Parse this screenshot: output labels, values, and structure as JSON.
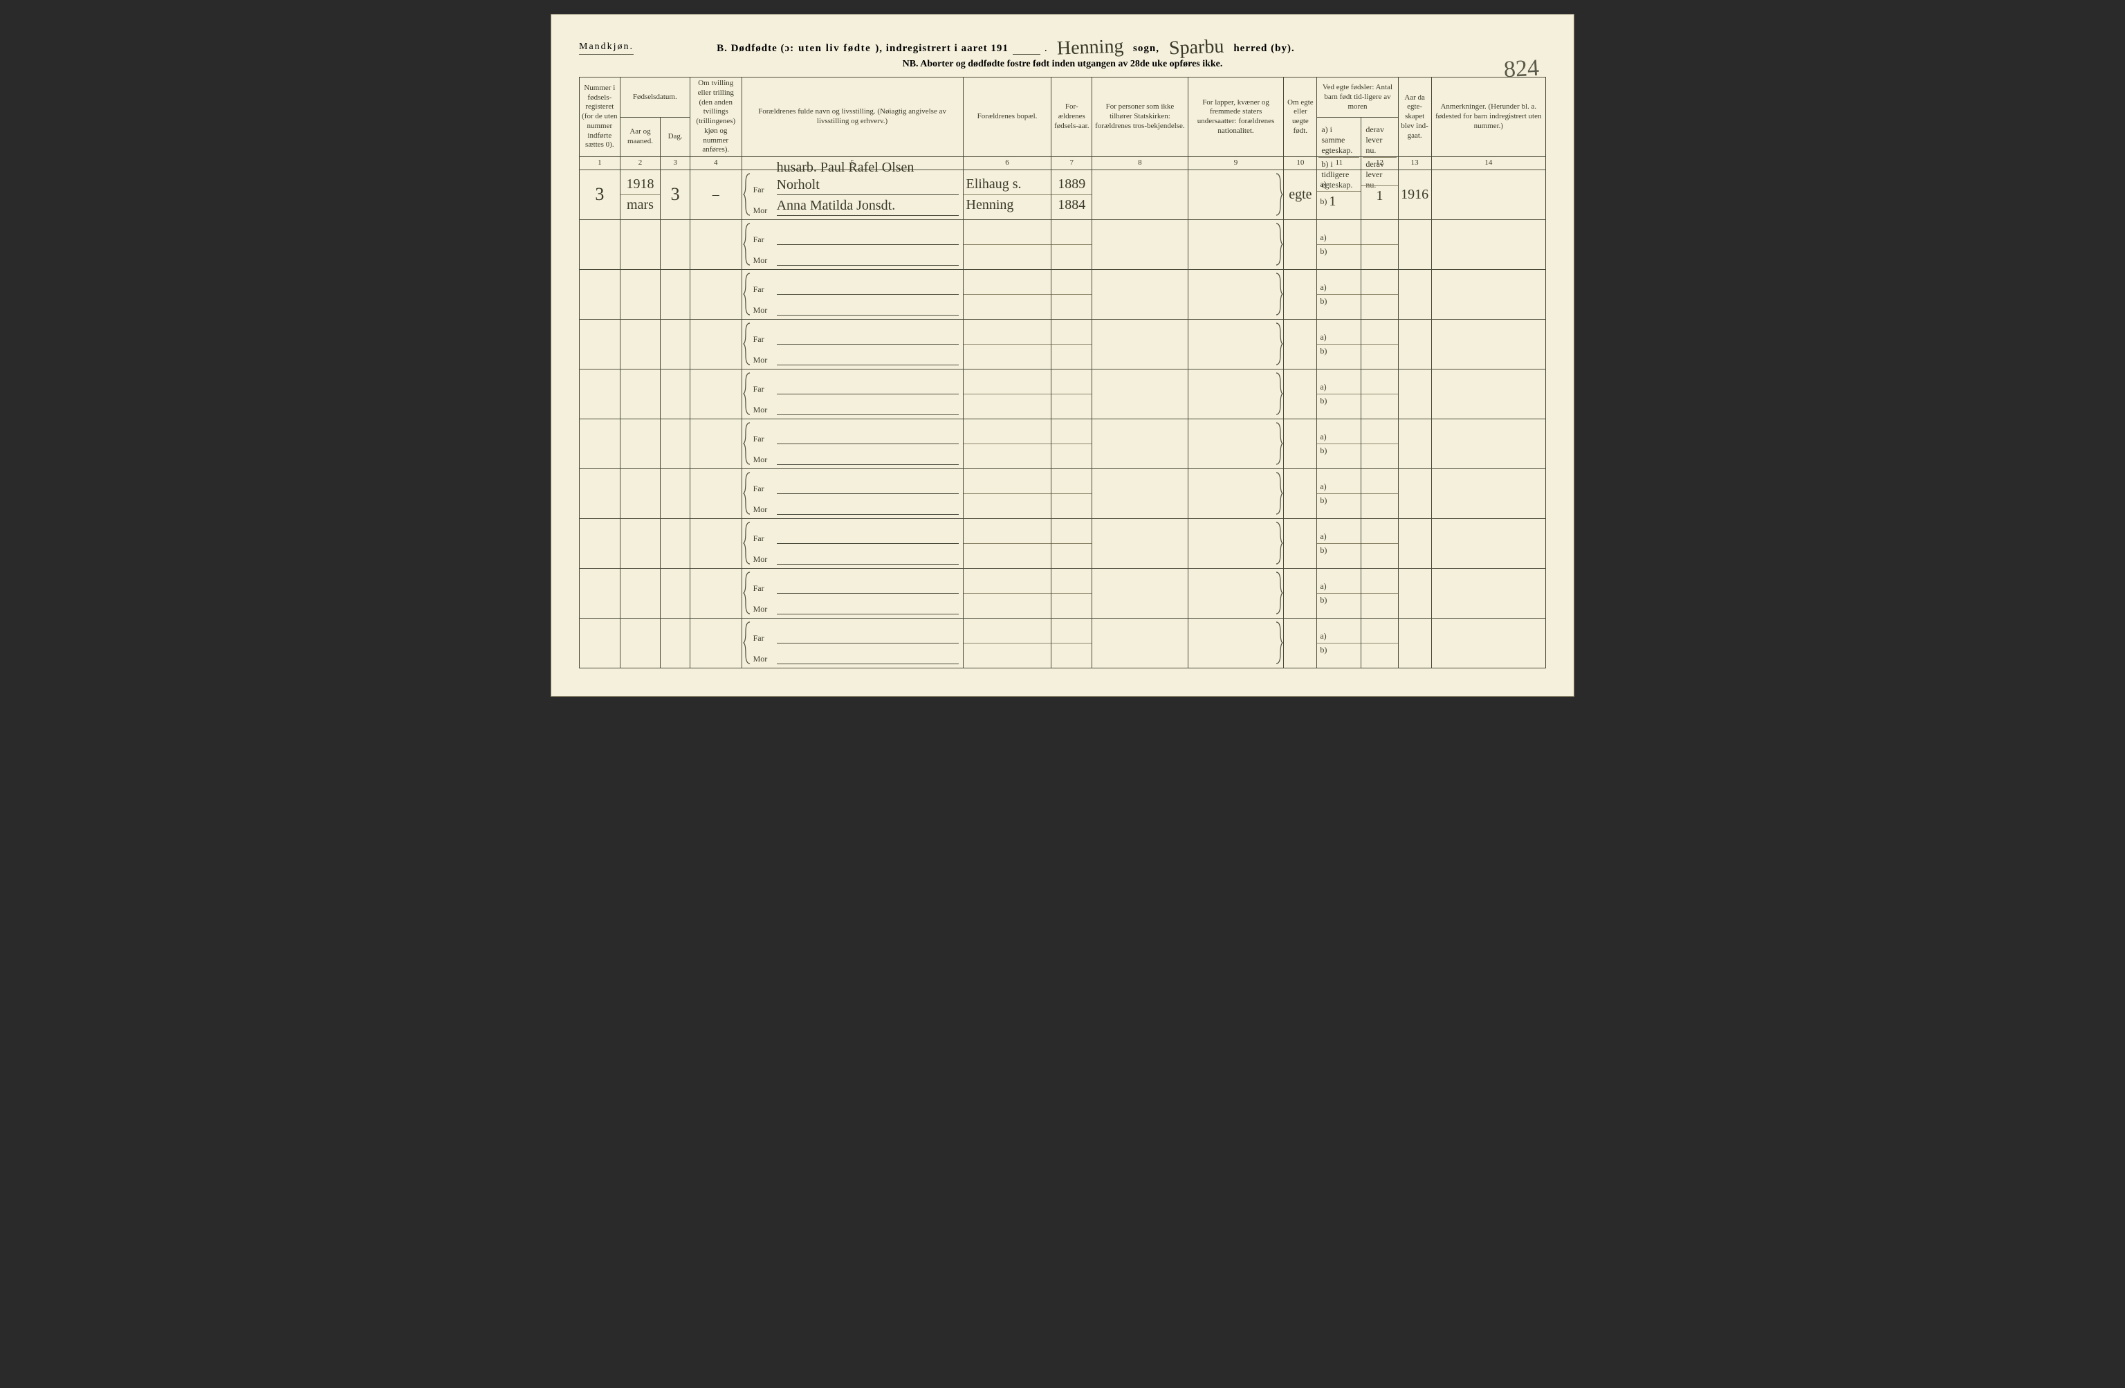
{
  "page_number_hw": "824",
  "gender_label": "Mandkjøn.",
  "title": {
    "prefix": "B. Dødfødte (ɔ:",
    "spaced": "uten liv fødte",
    "mid": "), indregistrert i aaret 191",
    "dot": ".",
    "sogn_hw": "Henning",
    "sogn_label": "sogn,",
    "herred_hw": "Sparbu",
    "herred_label": "herred (by)."
  },
  "nb_line": "NB.  Aborter og dødfødte fostre født inden utgangen av 28de uke opføres ikke.",
  "headers": {
    "c1": "Nummer i fødsels-registeret (for de uten nummer indførte sættes 0).",
    "c2_top": "Fødselsdatum.",
    "c2a": "Aar og maaned.",
    "c2b": "Dag.",
    "c4": "Om tvilling eller trilling (den anden tvillings (trillingenes) kjøn og nummer anføres).",
    "c5": "Forældrenes fulde navn og livsstilling.\n(Nøiagtig angivelse av livsstilling og erhverv.)",
    "c6": "Forældrenes bopæl.",
    "c7": "For-ældrenes fødsels-aar.",
    "c8": "For personer som ikke tilhører Statskirken: forældrenes tros-bekjendelse.",
    "c9": "For lapper, kvæner og fremmede staters undersaatter: forældrenes nationalitet.",
    "c10": "Om egte eller uegte født.",
    "c11_top": "Ved egte fødsler: Antal barn født tid-ligere av moren",
    "c11a": "a) i samme egteskap.",
    "c11a2": "b) i tidligere egteskap.",
    "c12a": "derav lever nu.",
    "c12b": "derav lever nu.",
    "c13": "Aar da egte-skapet blev ind-gaat.",
    "c14": "Anmerkninger.\n(Herunder bl. a. fødested for barn indregistrert uten nummer.)"
  },
  "colnums": [
    "1",
    "2",
    "3",
    "4",
    "5",
    "6",
    "7",
    "8",
    "9",
    "10",
    "11",
    "12",
    "13",
    "14"
  ],
  "labels": {
    "far": "Far",
    "mor": "Mor",
    "a": "a)",
    "b": "b)"
  },
  "entry": {
    "reg_no": "3",
    "year": "1918",
    "month": "mars",
    "day": "3",
    "twin": "–",
    "far_name": "husarb. Paul Rafel Olsen Norholt",
    "mor_name": "Anna Matilda Jonsdt.",
    "bopal_far": "Elihaug s.",
    "bopal_mor": "Henning",
    "far_year": "1889",
    "mor_year": "1884",
    "egte": "egte",
    "c11_b_val": "1",
    "c12_b_val": "1",
    "marriage_year": "1916"
  },
  "style": {
    "paper": "#f5f0dc",
    "ink": "#3a3a2a",
    "rule": "#4a4a3a",
    "rule_light": "#8a8468",
    "background": "#2a2a2a"
  }
}
